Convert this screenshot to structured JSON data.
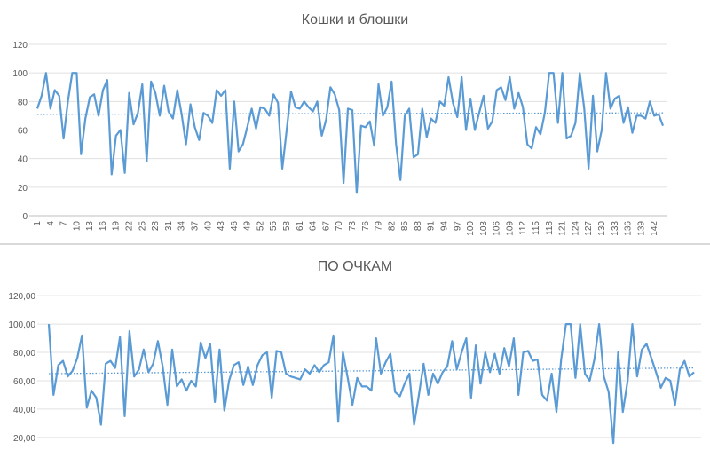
{
  "charts": [
    {
      "title": "Кошки и блошки",
      "chart_data": {
        "type": "line",
        "title": "Кошки и блошки",
        "ylim": [
          0,
          120
        ],
        "yticks": [
          "0",
          "20",
          "40",
          "60",
          "80",
          "100",
          "120"
        ],
        "x_tick_labels": [
          1,
          4,
          7,
          10,
          13,
          16,
          19,
          22,
          25,
          28,
          31,
          34,
          37,
          40,
          43,
          46,
          49,
          52,
          55,
          58,
          61,
          64,
          67,
          70,
          73,
          76,
          79,
          82,
          85,
          88,
          91,
          94,
          97,
          100,
          103,
          106,
          109,
          112,
          115,
          118,
          121,
          124,
          127,
          130,
          133,
          136,
          139,
          142
        ],
        "trendline": {
          "style": "dotted",
          "start": 71,
          "end": 72
        },
        "series": [
          {
            "color": "#5B9BD5",
            "values": [
              75,
              84,
              100,
              75,
              88,
              84,
              54,
              80,
              100,
              100,
              43,
              68,
              83,
              85,
              70,
              88,
              95,
              29,
              56,
              60,
              30,
              86,
              64,
              72,
              92,
              38,
              94,
              86,
              70,
              91,
              73,
              68,
              88,
              71,
              50,
              78,
              62,
              53,
              72,
              70,
              65,
              88,
              84,
              88,
              33,
              80,
              45,
              50,
              62,
              75,
              61,
              76,
              75,
              70,
              85,
              79,
              33,
              60,
              87,
              76,
              75,
              80,
              76,
              73,
              80,
              56,
              67,
              90,
              85,
              74,
              23,
              75,
              74,
              16,
              63,
              62,
              66,
              49,
              92,
              70,
              76,
              94,
              50,
              25,
              70,
              75,
              41,
              43,
              75,
              55,
              68,
              65,
              80,
              77,
              97,
              79,
              69,
              97,
              60,
              82,
              60,
              72,
              84,
              61,
              66,
              88,
              90,
              81,
              97,
              75,
              86,
              76,
              50,
              47,
              62,
              57,
              72,
              100,
              100,
              65,
              100,
              54,
              56,
              65,
              100,
              75,
              33,
              84,
              45,
              60,
              100,
              75,
              82,
              84,
              65,
              76,
              58,
              70,
              70,
              68,
              80,
              70,
              71,
              63
            ]
          }
        ]
      }
    },
    {
      "title": "ПО ОЧКАМ",
      "chart_data": {
        "type": "line",
        "title": "ПО ОЧКАМ",
        "ylim": [
          13,
          127
        ],
        "yticks": [
          "20,00",
          "40,00",
          "60,00",
          "80,00",
          "100,00",
          "120,00"
        ],
        "trendline": {
          "style": "dotted",
          "start": 65,
          "end": 69
        },
        "series": [
          {
            "color": "#5B9BD5",
            "values": [
              100,
              50,
              71,
              74,
              63,
              67,
              76,
              92,
              41,
              53,
              48,
              29,
              72,
              74,
              69,
              91,
              35,
              95,
              63,
              68,
              82,
              66,
              72,
              88,
              70,
              43,
              82,
              56,
              61,
              53,
              60,
              56,
              87,
              76,
              86,
              45,
              82,
              39,
              60,
              71,
              73,
              57,
              70,
              57,
              71,
              78,
              80,
              48,
              81,
              80,
              65,
              63,
              62,
              61,
              68,
              65,
              71,
              66,
              71,
              73,
              92,
              31,
              80,
              62,
              43,
              62,
              56,
              56,
              53,
              90,
              65,
              73,
              79,
              52,
              49,
              58,
              65,
              29,
              50,
              72,
              50,
              65,
              58,
              66,
              70,
              88,
              68,
              80,
              90,
              48,
              85,
              58,
              80,
              66,
              79,
              65,
              83,
              70,
              90,
              50,
              80,
              81,
              74,
              75,
              50,
              46,
              65,
              38,
              75,
              100,
              100,
              62,
              100,
              65,
              60,
              75,
              100,
              63,
              52,
              16,
              80,
              38,
              60,
              100,
              63,
              82,
              86,
              76,
              66,
              55,
              62,
              60,
              43,
              68,
              74,
              63,
              66
            ]
          }
        ]
      }
    }
  ]
}
